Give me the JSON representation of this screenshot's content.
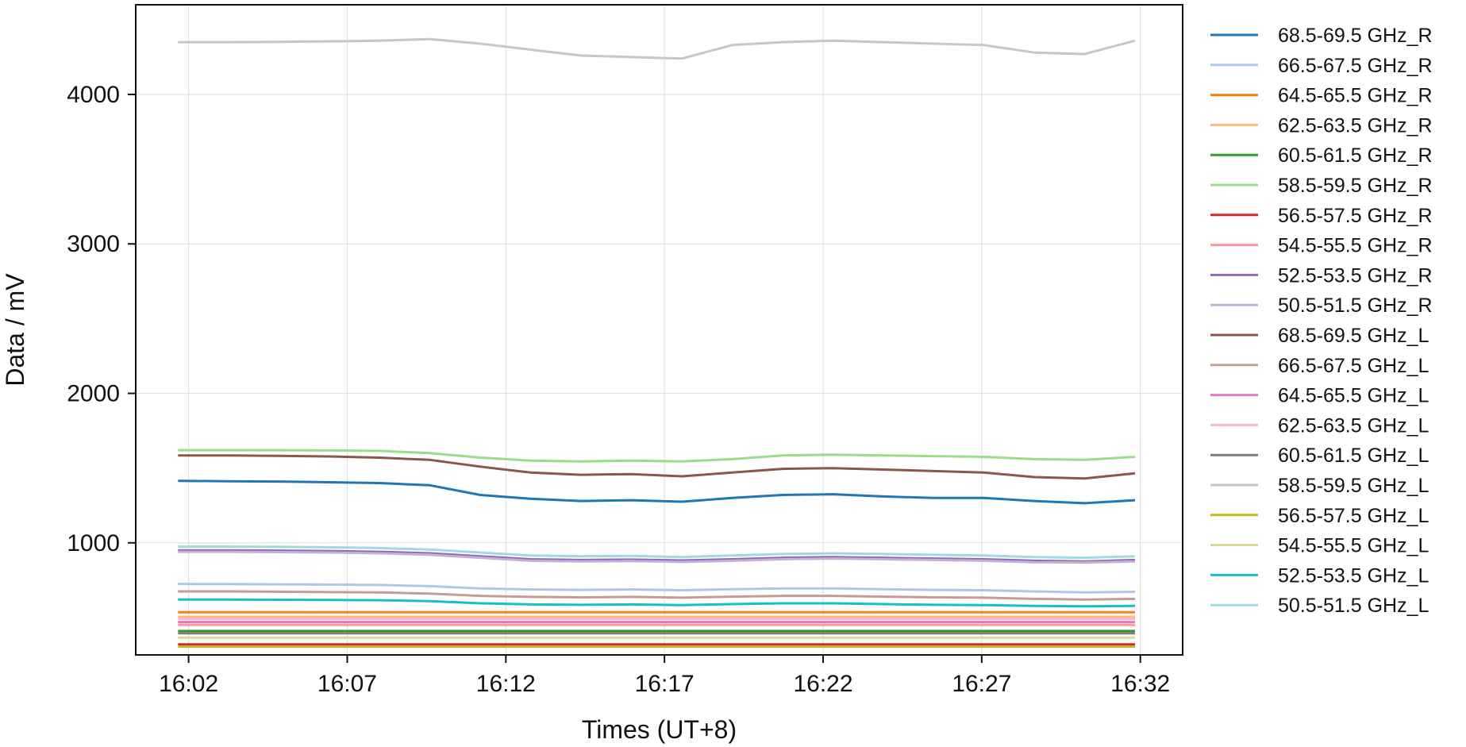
{
  "chart_data": {
    "type": "line",
    "title": "",
    "xlabel": "Times (UT+8)",
    "ylabel": "Data / mV",
    "x_ticks": [
      "16:02",
      "16:07",
      "16:12",
      "16:17",
      "16:22",
      "16:27",
      "16:32"
    ],
    "y_ticks": [
      "1000",
      "2000",
      "3000",
      "4000"
    ],
    "xlim": [
      "16:00:20",
      "16:33:20"
    ],
    "ylim": [
      250,
      4600
    ],
    "grid": true,
    "legend_position": "right, outside plot",
    "x_start": "16:01:40",
    "x_end": "16:31:50",
    "series": [
      {
        "name": "68.5-69.5 GHz_R",
        "color": "#1f77b4",
        "values": [
          1415,
          1412,
          1410,
          1405,
          1400,
          1385,
          1320,
          1295,
          1280,
          1285,
          1275,
          1300,
          1320,
          1325,
          1310,
          1300,
          1300,
          1280,
          1265,
          1285
        ]
      },
      {
        "name": "66.5-67.5 GHz_R",
        "color": "#aec7e8",
        "values": [
          725,
          724,
          722,
          720,
          718,
          710,
          695,
          688,
          685,
          688,
          683,
          690,
          695,
          695,
          690,
          685,
          683,
          675,
          668,
          672
        ]
      },
      {
        "name": "64.5-65.5 GHz_R",
        "color": "#ff7f0e",
        "values": [
          535,
          535,
          535,
          535,
          535,
          535,
          535,
          535,
          535,
          535,
          535,
          535,
          535,
          535,
          535,
          535,
          535,
          535,
          535,
          535
        ]
      },
      {
        "name": "62.5-63.5 GHz_R",
        "color": "#ffbb78",
        "values": [
          505,
          505,
          505,
          505,
          505,
          505,
          505,
          505,
          505,
          505,
          505,
          505,
          505,
          505,
          505,
          505,
          505,
          505,
          505,
          505
        ]
      },
      {
        "name": "60.5-61.5 GHz_R",
        "color": "#2ca02c",
        "values": [
          410,
          410,
          410,
          410,
          410,
          410,
          410,
          410,
          410,
          410,
          410,
          410,
          410,
          410,
          410,
          410,
          410,
          410,
          410,
          410
        ]
      },
      {
        "name": "58.5-59.5 GHz_R",
        "color": "#98df8a",
        "values": [
          1620,
          1620,
          1620,
          1618,
          1615,
          1600,
          1570,
          1550,
          1545,
          1550,
          1545,
          1560,
          1585,
          1590,
          1585,
          1580,
          1575,
          1560,
          1555,
          1575
        ]
      },
      {
        "name": "56.5-57.5 GHz_R",
        "color": "#d62728",
        "values": [
          320,
          320,
          320,
          320,
          320,
          320,
          320,
          320,
          320,
          320,
          320,
          320,
          320,
          320,
          320,
          320,
          320,
          320,
          320,
          320
        ]
      },
      {
        "name": "54.5-55.5 GHz_R",
        "color": "#ff9896",
        "values": [
          450,
          450,
          450,
          450,
          450,
          450,
          450,
          450,
          450,
          450,
          450,
          450,
          450,
          450,
          450,
          450,
          450,
          450,
          450,
          450
        ]
      },
      {
        "name": "52.5-53.5 GHz_R",
        "color": "#9467bd",
        "values": [
          950,
          950,
          948,
          945,
          940,
          930,
          910,
          890,
          885,
          888,
          882,
          890,
          900,
          905,
          900,
          895,
          890,
          880,
          875,
          885
        ]
      },
      {
        "name": "50.5-51.5 GHz_R",
        "color": "#c5b0d5",
        "values": [
          940,
          940,
          938,
          935,
          930,
          920,
          900,
          880,
          875,
          878,
          872,
          880,
          890,
          895,
          890,
          885,
          880,
          870,
          868,
          875
        ]
      },
      {
        "name": "68.5-69.5 GHz_L",
        "color": "#8c564b",
        "values": [
          1585,
          1585,
          1582,
          1578,
          1570,
          1555,
          1510,
          1470,
          1455,
          1460,
          1445,
          1470,
          1495,
          1500,
          1490,
          1480,
          1470,
          1440,
          1430,
          1465
        ]
      },
      {
        "name": "66.5-67.5 GHz_L",
        "color": "#c49c94",
        "values": [
          675,
          675,
          673,
          670,
          668,
          660,
          645,
          638,
          635,
          638,
          633,
          640,
          645,
          645,
          640,
          635,
          633,
          625,
          620,
          625
        ]
      },
      {
        "name": "64.5-65.5 GHz_L",
        "color": "#e377c2",
        "values": [
          470,
          470,
          470,
          470,
          470,
          470,
          470,
          470,
          470,
          470,
          470,
          470,
          470,
          470,
          470,
          470,
          470,
          470,
          470,
          470
        ]
      },
      {
        "name": "62.5-63.5 GHz_L",
        "color": "#f7b6d2",
        "values": [
          490,
          490,
          490,
          490,
          490,
          490,
          490,
          490,
          490,
          490,
          490,
          490,
          490,
          490,
          490,
          490,
          490,
          490,
          490,
          490
        ]
      },
      {
        "name": "60.5-61.5 GHz_L",
        "color": "#7f7f7f",
        "values": [
          395,
          395,
          395,
          395,
          395,
          395,
          395,
          395,
          395,
          395,
          395,
          395,
          395,
          395,
          395,
          395,
          395,
          395,
          395,
          395
        ]
      },
      {
        "name": "58.5-59.5 GHz_L",
        "color": "#c7c7c7",
        "values": [
          4350,
          4350,
          4352,
          4355,
          4360,
          4370,
          4340,
          4300,
          4260,
          4250,
          4240,
          4330,
          4350,
          4360,
          4350,
          4340,
          4330,
          4280,
          4270,
          4360
        ]
      },
      {
        "name": "56.5-57.5 GHz_L",
        "color": "#bcbd22",
        "values": [
          305,
          305,
          305,
          305,
          305,
          305,
          305,
          305,
          305,
          305,
          305,
          305,
          305,
          305,
          305,
          305,
          305,
          305,
          305,
          305
        ]
      },
      {
        "name": "54.5-55.5 GHz_L",
        "color": "#dbdb8d",
        "values": [
          365,
          365,
          365,
          365,
          365,
          365,
          365,
          365,
          365,
          365,
          365,
          365,
          365,
          365,
          365,
          365,
          365,
          365,
          365,
          365
        ]
      },
      {
        "name": "52.5-53.5 GHz_L",
        "color": "#17becf",
        "values": [
          620,
          620,
          619,
          618,
          616,
          610,
          595,
          588,
          585,
          588,
          583,
          590,
          595,
          595,
          590,
          585,
          583,
          578,
          575,
          578
        ]
      },
      {
        "name": "50.5-51.5 GHz_L",
        "color": "#9edae5",
        "values": [
          975,
          975,
          973,
          970,
          965,
          955,
          935,
          915,
          910,
          913,
          905,
          915,
          925,
          930,
          925,
          920,
          915,
          905,
          900,
          910
        ]
      }
    ]
  }
}
